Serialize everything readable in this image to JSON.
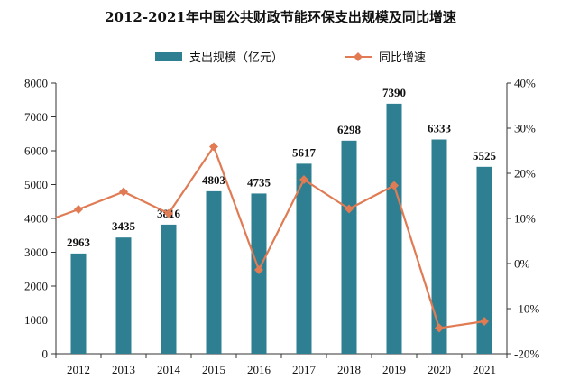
{
  "chart_data": {
    "type": "bar",
    "title": "2012-2021年中国公共财政节能环保支出规模及同比增速",
    "categories": [
      "2012",
      "2013",
      "2014",
      "2015",
      "2016",
      "2017",
      "2018",
      "2019",
      "2020",
      "2021"
    ],
    "series": [
      {
        "name": "支出规模（亿元）",
        "type": "bar",
        "axis": "left",
        "color": "#2e7f91",
        "values": [
          2963,
          3435,
          3816,
          4803,
          4735,
          5617,
          6298,
          7390,
          6333,
          5525
        ],
        "labels": [
          "2963",
          "3435",
          "3816",
          "4803",
          "4735",
          "5617",
          "6298",
          "7390",
          "6333",
          "5525"
        ]
      },
      {
        "name": "同比增速",
        "type": "line",
        "axis": "right",
        "color": "#e07b54",
        "marker": "diamond",
        "values": [
          12.0,
          15.9,
          11.1,
          25.9,
          -1.4,
          18.6,
          12.1,
          17.3,
          -14.3,
          -12.8
        ],
        "line_starts_at_left_axis_value": 10.2
      }
    ],
    "y_left": {
      "ylim": [
        0,
        8000
      ],
      "ticks": [
        0,
        1000,
        2000,
        3000,
        4000,
        5000,
        6000,
        7000,
        8000
      ],
      "tick_labels": [
        "0",
        "1000",
        "2000",
        "3000",
        "4000",
        "5000",
        "6000",
        "7000",
        "8000"
      ]
    },
    "y_right": {
      "ylim": [
        -20,
        40
      ],
      "ticks": [
        -20,
        -10,
        0,
        10,
        20,
        30,
        40
      ],
      "tick_labels": [
        "-20%",
        "-10%",
        "0%",
        "10%",
        "20%",
        "30%",
        "40%"
      ]
    },
    "grid": false,
    "legend_position": "top-center"
  }
}
